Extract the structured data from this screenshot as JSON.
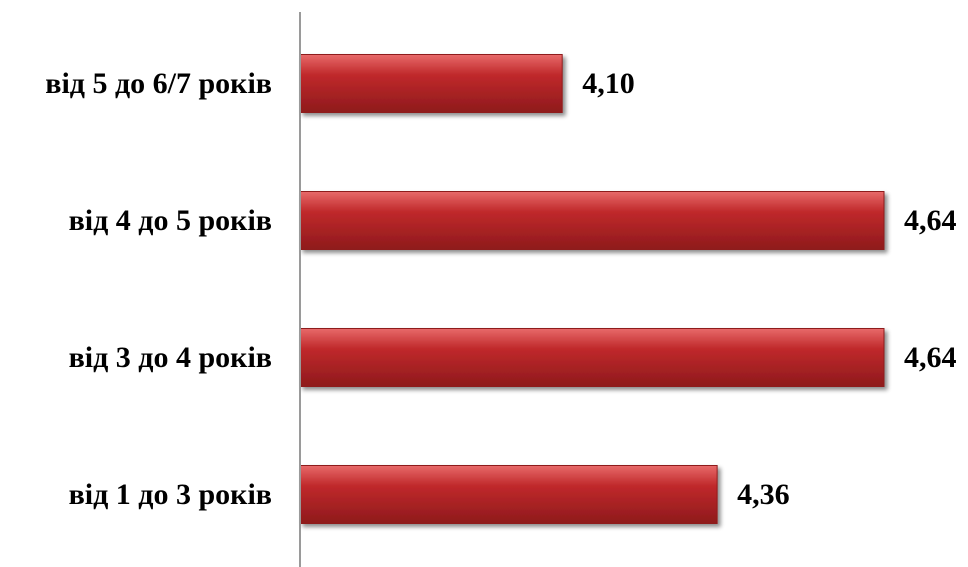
{
  "chart_data": {
    "type": "bar",
    "orientation": "horizontal",
    "categories": [
      "від 5 до 6/7 років",
      "від 4 до 5 років",
      "від 3 до 4 років",
      "від 1 до 3 років"
    ],
    "values": [
      4.1,
      4.64,
      4.64,
      4.36
    ],
    "value_labels": [
      "4,10",
      "4,64",
      "4,64",
      "4,36"
    ],
    "xlim": [
      3.66,
      4.64
    ],
    "title": "",
    "xlabel": "",
    "ylabel": "",
    "grid": false,
    "legend": "none",
    "bar_color": "#c0292b",
    "bar_color_light": "#e86a6a",
    "bar_color_dark": "#8e1a1c",
    "axis_color": "#9a9a9a"
  }
}
